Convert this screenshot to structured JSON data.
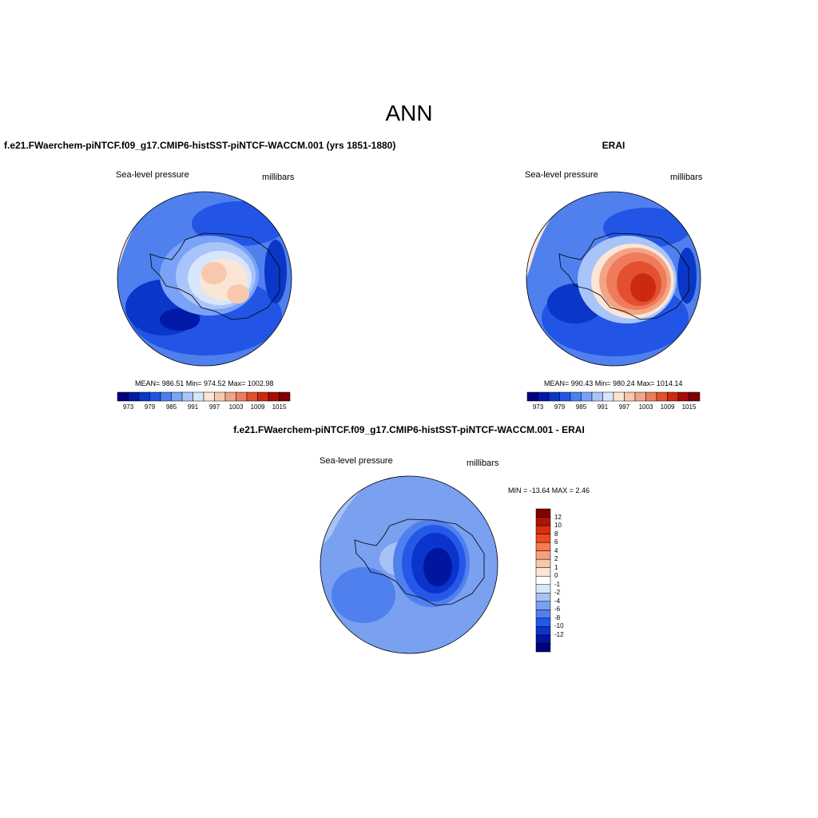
{
  "title": "ANN",
  "panels": [
    {
      "case": "f.e21.FWaerchem-piNTCF.f09_g17.CMIP6-histSST-piNTCF-WACCM.001 (yrs 1851-1880)",
      "variable": "Sea-level pressure",
      "units": "millibars",
      "stats": "MEAN= 986.51  Min= 974.52  Max= 1002.98"
    },
    {
      "case": "ERAI",
      "variable": "Sea-level pressure",
      "units": "millibars",
      "stats": "MEAN= 990.43  Min= 980.24  Max= 1014.14"
    },
    {
      "case": "f.e21.FWaerchem-piNTCF.f09_g17.CMIP6-histSST-piNTCF-WACCM.001 - ERAI",
      "variable": "Sea-level pressure",
      "units": "millibars",
      "stats": "MIN = -13.64 MAX =   2.46"
    }
  ],
  "colorbar_field": {
    "tick_labels": [
      "973",
      "979",
      "985",
      "991",
      "997",
      "1003",
      "1009",
      "1015"
    ],
    "colors": [
      "#00007f",
      "#0019a6",
      "#0a37c8",
      "#2255e6",
      "#4b7ef0",
      "#7aa2f6",
      "#a9c4f9",
      "#d7e6fb",
      "#fbe6d6",
      "#f8c8ae",
      "#f3a486",
      "#ee7c5c",
      "#e4502e",
      "#cc2a10",
      "#a80a06",
      "#7f0000"
    ]
  },
  "colorbar_diff": {
    "tick_labels": [
      "12",
      "10",
      "8",
      "6",
      "4",
      "2",
      "1",
      "0",
      "-1",
      "-2",
      "-4",
      "-6",
      "-8",
      "-10",
      "-12"
    ],
    "colors": [
      "#7f0000",
      "#b41106",
      "#d8300c",
      "#f04a1c",
      "#f77a52",
      "#f7a07a",
      "#f8c6ac",
      "#fbe6d4",
      "#ffffff",
      "#d9e6fb",
      "#a8c2f6",
      "#7aa0f0",
      "#4f80ee",
      "#2558e8",
      "#0b34cc",
      "#00169e",
      "#00007f"
    ]
  }
}
